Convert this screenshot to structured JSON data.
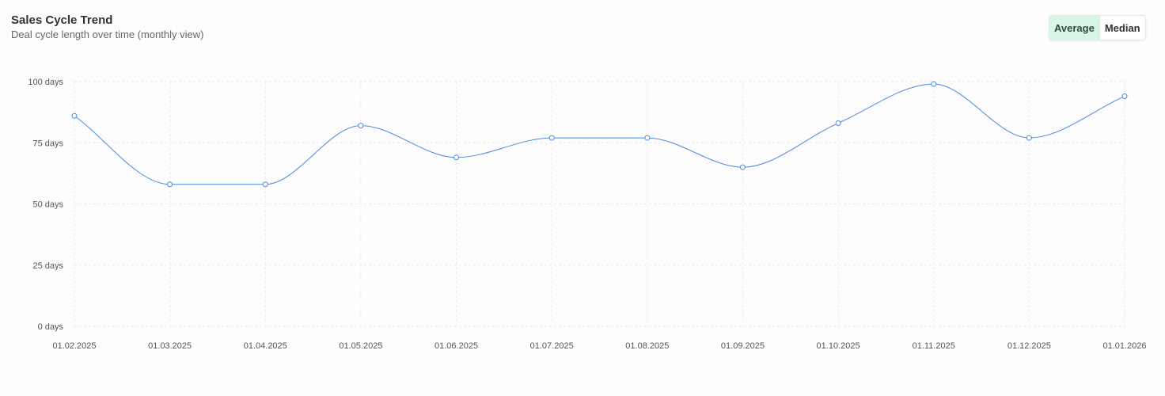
{
  "header": {
    "title": "Sales Cycle Trend",
    "subtitle": "Deal cycle length over time (monthly view)"
  },
  "toggle": {
    "options": [
      "Average",
      "Median"
    ],
    "selected": "Average"
  },
  "colors": {
    "line": "#4a8be0",
    "grid": "#ececec",
    "toggle_active": "#d8f5e6"
  },
  "chart_data": {
    "type": "line",
    "title": "Sales Cycle Trend",
    "subtitle": "Deal cycle length over time (monthly view)",
    "x": [
      "01.02.2025",
      "01.03.2025",
      "01.04.2025",
      "01.05.2025",
      "01.06.2025",
      "01.07.2025",
      "01.08.2025",
      "01.09.2025",
      "01.10.2025",
      "01.11.2025",
      "01.12.2025",
      "01.01.2026"
    ],
    "series": [
      {
        "values": [
          86,
          58,
          58,
          82,
          69,
          77,
          77,
          65,
          83,
          99,
          77,
          94
        ]
      }
    ],
    "y_ticks": [
      0,
      25,
      50,
      75,
      100
    ],
    "y_tick_labels": [
      "0 days",
      "25 days",
      "50 days",
      "75 days",
      "100 days"
    ],
    "ylim": [
      0,
      100
    ],
    "grid": true,
    "legend": "none"
  }
}
